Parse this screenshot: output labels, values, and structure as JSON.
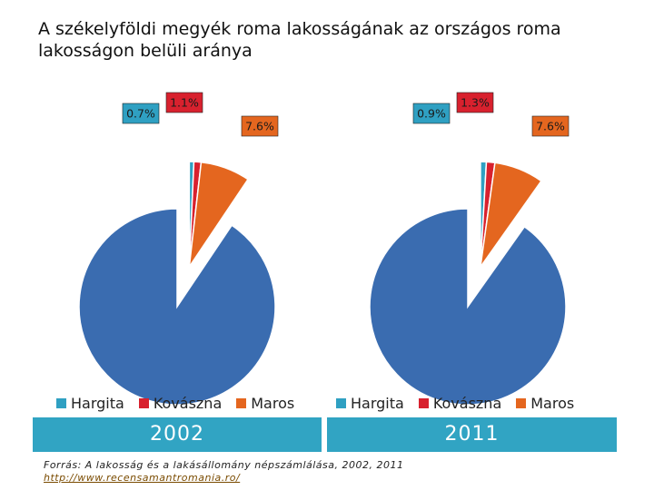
{
  "title": "A székelyföldi megyék roma lakosságának az országos roma lakosságon belüli aránya",
  "colors": {
    "Hargita": "#2fa0c2",
    "Kovászna": "#d8212e",
    "Maros": "#e4661f",
    "other": "#3a6cb0",
    "label_border": "#222222"
  },
  "chart_data": [
    {
      "type": "pie",
      "year": "2002",
      "slices": [
        {
          "name": "Hargita",
          "value": 0.7,
          "label": "0.7%",
          "color": "#2fa0c2"
        },
        {
          "name": "Kovászna",
          "value": 1.1,
          "label": "1.1%",
          "color": "#d8212e"
        },
        {
          "name": "Maros",
          "value": 7.6,
          "label": "7.6%",
          "color": "#e4661f"
        },
        {
          "name": "",
          "value": 90.6,
          "label": "",
          "color": "#3a6cb0"
        }
      ],
      "legend": [
        "Hargita",
        "Kovászna",
        "Maros"
      ]
    },
    {
      "type": "pie",
      "year": "2011",
      "slices": [
        {
          "name": "Hargita",
          "value": 0.9,
          "label": "0.9%",
          "color": "#2fa0c2"
        },
        {
          "name": "Kovászna",
          "value": 1.3,
          "label": "1.3%",
          "color": "#d8212e"
        },
        {
          "name": "Maros",
          "value": 7.6,
          "label": "7.6%",
          "color": "#e4661f"
        },
        {
          "name": "",
          "value": 90.2,
          "label": "",
          "color": "#3a6cb0"
        }
      ],
      "legend": [
        "Hargita",
        "Kovászna",
        "Maros"
      ]
    }
  ],
  "source": {
    "text": "Forrás: A lakosság és a lakásállomány népszámlálása, 2002, 2011",
    "url": "http://www.recensamantromania.ro/"
  }
}
